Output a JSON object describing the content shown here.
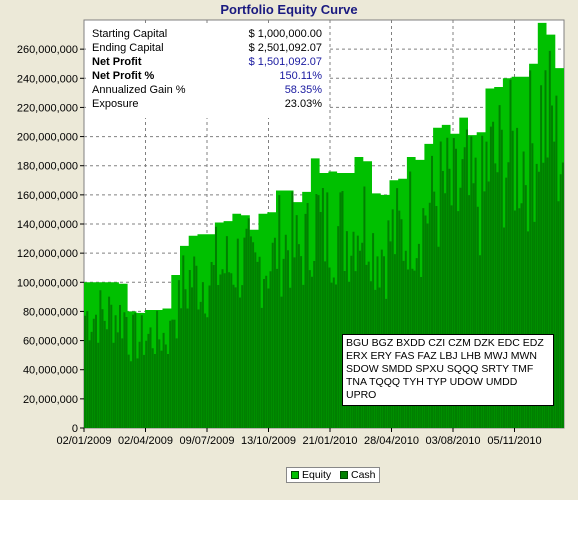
{
  "chart_data": {
    "type": "area",
    "title": "Portfolio Equity Curve",
    "xlabel": "",
    "ylabel": "",
    "ylim": [
      0,
      280000000
    ],
    "y_ticks": [
      0,
      20000000,
      40000000,
      60000000,
      80000000,
      100000000,
      120000000,
      140000000,
      160000000,
      180000000,
      200000000,
      220000000,
      240000000,
      260000000
    ],
    "y_tick_labels": [
      "0",
      "20,000,000",
      "40,000,000",
      "60,000,000",
      "80,000,000",
      "100,000,000",
      "120,000,000",
      "140,000,000",
      "160,000,000",
      "180,000,000",
      "200,000,000",
      "220,000,000",
      "240,000,000",
      "260,000,000"
    ],
    "x_tick_labels": [
      "02/01/2009",
      "02/04/2009",
      "09/07/2009",
      "13/10/2009",
      "21/01/2010",
      "28/04/2010",
      "03/08/2010",
      "05/11/2010"
    ],
    "grid": true,
    "legend_position": "bottom-center",
    "series": [
      {
        "name": "Equity",
        "color": "#00c000",
        "values": [
          100000000,
          100000000,
          100000000,
          100000000,
          99000000,
          80000000,
          79000000,
          81000000,
          81000000,
          82000000,
          105000000,
          125000000,
          132000000,
          133000000,
          133000000,
          141000000,
          142000000,
          147000000,
          146000000,
          136000000,
          147000000,
          148000000,
          163000000,
          163000000,
          155000000,
          162000000,
          185000000,
          175000000,
          176000000,
          175000000,
          175000000,
          186000000,
          183000000,
          161000000,
          160000000,
          170000000,
          171000000,
          186000000,
          184000000,
          195000000,
          206000000,
          208000000,
          202000000,
          213000000,
          201000000,
          203000000,
          233000000,
          234000000,
          240000000,
          241000000,
          241000000,
          250000000,
          278000000,
          270000000,
          247000000
        ]
      },
      {
        "name": "Cash",
        "color": "#008000"
      }
    ]
  },
  "stats": [
    {
      "label": "Starting Capital",
      "value": "$ 1,000,000.00"
    },
    {
      "label": "Ending Capital",
      "value": "$ 2,501,092.07"
    },
    {
      "label": "Net Profit",
      "value": "$ 1,501,092.07"
    },
    {
      "label": "Net Profit %",
      "value": "150.11%"
    },
    {
      "label": "Annualized Gain %",
      "value": "58.35%"
    },
    {
      "label": "Exposure",
      "value": "23.03%"
    }
  ],
  "symbols_text": "BGU BGZ BXDD CZI CZM DZK EDC EDZ ERX ERY FAS FAZ LBJ LHB MWJ MWN SDOW SMDD SPXU SQQQ SRTY TMF TNA TQQQ TYH TYP UDOW UMDD UPRO"
}
